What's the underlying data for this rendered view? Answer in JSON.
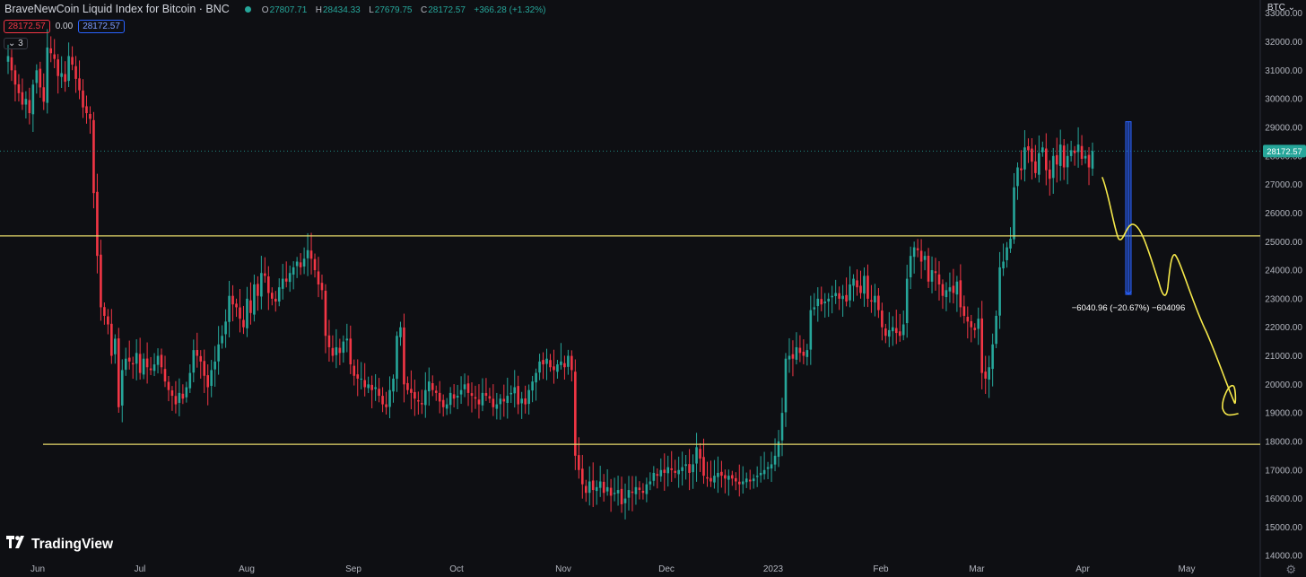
{
  "header": {
    "symbol_title": "BraveNewCoin Liquid Index for Bitcoin · BNC",
    "ohlc": [
      {
        "key": "O",
        "value": "27807.71"
      },
      {
        "key": "H",
        "value": "28434.33"
      },
      {
        "key": "L",
        "value": "27679.75"
      },
      {
        "key": "C",
        "value": "28172.57"
      }
    ],
    "change": "+366.28 (+1.32%)",
    "bid": "28172.57",
    "spread": "0.00",
    "ask": "28172.57",
    "collapse_label": "3",
    "currency": "BTC"
  },
  "brand": "TradingView",
  "colors": {
    "up": "#26a69a",
    "down": "#f23645",
    "hline": "#e5d96a",
    "drawing": "#f5e84a",
    "background": "#0e0f13",
    "measure": "#2962ff"
  },
  "chart_data": {
    "type": "candlestick",
    "y_ticks": [
      14000,
      15000,
      16000,
      17000,
      18000,
      19000,
      20000,
      21000,
      22000,
      23000,
      24000,
      25000,
      26000,
      27000,
      28000,
      29000,
      30000,
      31000,
      32000,
      33000
    ],
    "ylim": [
      13850,
      33400
    ],
    "x_ticks": [
      "Jun",
      "Jul",
      "Aug",
      "Sep",
      "Oct",
      "Nov",
      "Dec",
      "2023",
      "Feb",
      "Mar",
      "Apr",
      "May"
    ],
    "last_price": "28172.57",
    "horizontal_lines": [
      25200,
      17900
    ],
    "measure": {
      "from": 29200,
      "to": 23150,
      "label": "−6040.96 (−20.67%) −604096"
    },
    "closes": [
      31500,
      31000,
      30500,
      30200,
      29800,
      30000,
      29500,
      30500,
      31000,
      30400,
      29900,
      31800,
      31600,
      31400,
      30800,
      30900,
      30600,
      31500,
      31200,
      30700,
      30300,
      29700,
      29500,
      29300,
      26700,
      24500,
      22700,
      22400,
      22100,
      21000,
      21600,
      19200,
      20500,
      20900,
      20800,
      20700,
      21100,
      20400,
      20900,
      20600,
      20500,
      20700,
      21000,
      20600,
      20100,
      19800,
      19600,
      19300,
      19700,
      19500,
      19900,
      20400,
      21200,
      21000,
      20800,
      20300,
      19900,
      20500,
      20800,
      21400,
      21700,
      22200,
      23100,
      22800,
      22700,
      22300,
      22000,
      23000,
      22500,
      23500,
      23100,
      23900,
      23800,
      23200,
      23000,
      22900,
      23400,
      23700,
      23600,
      23900,
      24100,
      24300,
      24100,
      24400,
      24700,
      24400,
      24000,
      23500,
      23300,
      21700,
      21300,
      21000,
      21300,
      21100,
      21500,
      21600,
      20700,
      20300,
      20200,
      20200,
      19900,
      20000,
      19800,
      19900,
      19600,
      19300,
      19200,
      19800,
      20200,
      21700,
      22000,
      20000,
      19800,
      19700,
      19500,
      19400,
      19300,
      19800,
      20100,
      19800,
      19700,
      19400,
      19200,
      19300,
      19700,
      19500,
      19600,
      19800,
      20000,
      19700,
      19600,
      19500,
      19300,
      19700,
      19600,
      19500,
      19200,
      19300,
      19500,
      19400,
      19600,
      19700,
      19900,
      19300,
      19500,
      19300,
      19800,
      20100,
      20400,
      20800,
      20700,
      20900,
      20600,
      20500,
      20700,
      20800,
      20600,
      21000,
      20500,
      17500,
      17000,
      16500,
      16200,
      16600,
      16300,
      16400,
      16600,
      16200,
      16400,
      16100,
      16200,
      16300,
      15800,
      16000,
      16300,
      16200,
      16400,
      16300,
      16200,
      16500,
      16600,
      16900,
      16800,
      17000,
      16900,
      17100,
      17000,
      16900,
      17000,
      17100,
      17200,
      16900,
      17200,
      17800,
      17400,
      16800,
      16700,
      16600,
      16800,
      16900,
      16800,
      16700,
      16800,
      16700,
      16600,
      16500,
      16600,
      16700,
      16600,
      16700,
      16800,
      16900,
      17000,
      17100,
      17200,
      17500,
      18000,
      19000,
      20900,
      21000,
      20900,
      21300,
      21100,
      21000,
      21200,
      22600,
      22700,
      23000,
      22800,
      22900,
      23000,
      23100,
      23200,
      23000,
      23100,
      22900,
      23500,
      23700,
      23400,
      23200,
      23800,
      23000,
      22900,
      23100,
      22600,
      22000,
      21700,
      21900,
      22000,
      21800,
      21700,
      22100,
      23700,
      24500,
      24800,
      24700,
      24300,
      24500,
      23600,
      24000,
      23900,
      23500,
      23100,
      23300,
      23400,
      23200,
      23600,
      22700,
      22400,
      22200,
      22000,
      21900,
      22300,
      20400,
      20200,
      20600,
      21400,
      22400,
      24100,
      24300,
      24800,
      25100,
      26900,
      27600,
      27500,
      28300,
      28200,
      27800,
      27400,
      28100,
      28300,
      27500,
      27200,
      28000,
      27700,
      28400,
      27600,
      28000,
      28200,
      28100,
      28400,
      27900,
      28000,
      27600,
      28172.57
    ]
  }
}
